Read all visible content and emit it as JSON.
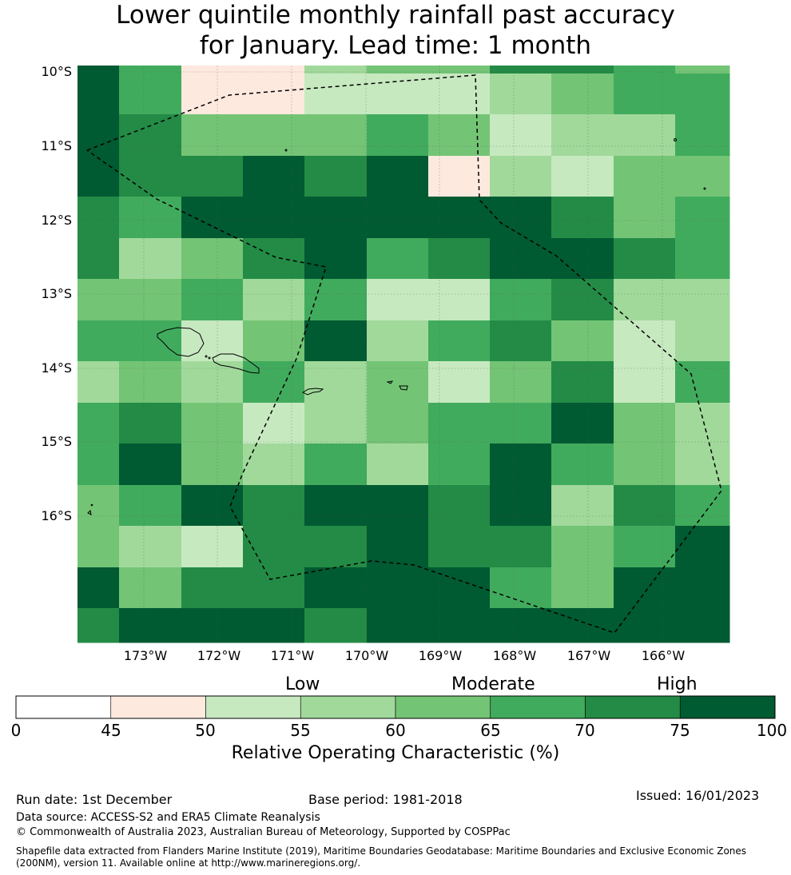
{
  "title_line1": "Lower quintile monthly rainfall past accuracy",
  "title_line2": "for January. Lead time: 1 month",
  "lat_labels": [
    "10°S",
    "11°S",
    "12°S",
    "13°S",
    "14°S",
    "15°S",
    "16°S"
  ],
  "lon_labels": [
    "173°W",
    "172°W",
    "171°W",
    "170°W",
    "169°W",
    "168°W",
    "167°W",
    "166°W"
  ],
  "categories": [
    "Low",
    "Moderate",
    "High"
  ],
  "colorbar": {
    "ticks": [
      "0",
      "45",
      "50",
      "55",
      "60",
      "65",
      "70",
      "75",
      "100"
    ],
    "colors": [
      "#ffffff",
      "#fee9df",
      "#c7e9c0",
      "#a1d99b",
      "#74c476",
      "#41ab5d",
      "#238b45",
      "#005a32"
    ],
    "label": "Relative Operating Characteristic (%)"
  },
  "grid_levels": [
    [
      7,
      5,
      1,
      1,
      3,
      4,
      4,
      6,
      6,
      5,
      4
    ],
    [
      7,
      5,
      1,
      1,
      2,
      2,
      2,
      3,
      4,
      5,
      5
    ],
    [
      7,
      6,
      4,
      4,
      4,
      5,
      4,
      2,
      3,
      3,
      5
    ],
    [
      7,
      6,
      6,
      7,
      6,
      7,
      1,
      3,
      2,
      4,
      4
    ],
    [
      6,
      5,
      7,
      7,
      7,
      7,
      7,
      7,
      6,
      4,
      5
    ],
    [
      6,
      3,
      4,
      6,
      7,
      5,
      6,
      7,
      7,
      6,
      5
    ],
    [
      4,
      4,
      5,
      3,
      5,
      2,
      2,
      5,
      6,
      3,
      3
    ],
    [
      5,
      5,
      2,
      4,
      7,
      3,
      5,
      6,
      4,
      2,
      3
    ],
    [
      3,
      4,
      3,
      5,
      3,
      4,
      2,
      4,
      6,
      2,
      5
    ],
    [
      5,
      6,
      4,
      2,
      3,
      4,
      5,
      5,
      7,
      4,
      3
    ],
    [
      5,
      7,
      4,
      3,
      5,
      3,
      5,
      7,
      5,
      4,
      3
    ],
    [
      4,
      5,
      7,
      6,
      7,
      7,
      6,
      7,
      3,
      6,
      5
    ],
    [
      4,
      3,
      2,
      6,
      6,
      7,
      6,
      6,
      4,
      5,
      7
    ],
    [
      7,
      4,
      6,
      6,
      7,
      7,
      7,
      5,
      4,
      7,
      7
    ],
    [
      6,
      7,
      7,
      7,
      6,
      7,
      7,
      7,
      7,
      7,
      7
    ]
  ],
  "run_date": "Run date: 1st December",
  "base_period": "Base period: 1981-2018",
  "issued": "Issued: 16/01/2023",
  "data_source": "Data source: ACCESS-S2 and ERA5 Climate Reanalysis",
  "copyright": "© Commonwealth of Australia 2023, Australian Bureau of Meteorology, Supported by COSPPac",
  "shapefile_line1": "Shapefile data extracted from Flanders Marine Institute (2019), Maritime Boundaries Geodatabase: Maritime Boundaries and Exclusive Economic Zones",
  "shapefile_line2": "(200NM), version 11. Available online at http://www.marineregions.org/."
}
